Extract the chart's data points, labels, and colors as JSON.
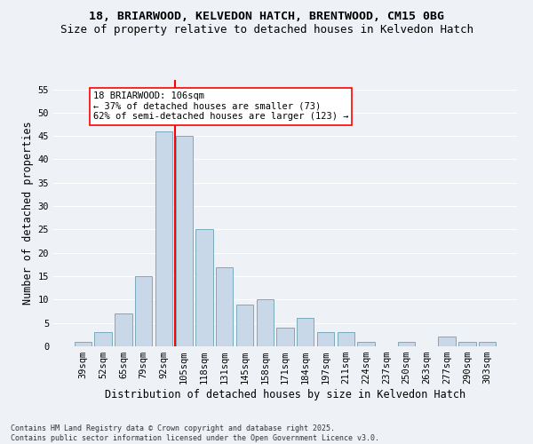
{
  "title1": "18, BRIARWOOD, KELVEDON HATCH, BRENTWOOD, CM15 0BG",
  "title2": "Size of property relative to detached houses in Kelvedon Hatch",
  "xlabel": "Distribution of detached houses by size in Kelvedon Hatch",
  "ylabel": "Number of detached properties",
  "categories": [
    "39sqm",
    "52sqm",
    "65sqm",
    "79sqm",
    "92sqm",
    "105sqm",
    "118sqm",
    "131sqm",
    "145sqm",
    "158sqm",
    "171sqm",
    "184sqm",
    "197sqm",
    "211sqm",
    "224sqm",
    "237sqm",
    "250sqm",
    "263sqm",
    "277sqm",
    "290sqm",
    "303sqm"
  ],
  "values": [
    1,
    3,
    7,
    15,
    46,
    45,
    25,
    17,
    9,
    10,
    4,
    6,
    3,
    3,
    1,
    0,
    1,
    0,
    2,
    1,
    1
  ],
  "bar_color": "#c8d8e8",
  "bar_edge_color": "#7aaabb",
  "vline_color": "red",
  "annotation_text": "18 BRIARWOOD: 106sqm\n← 37% of detached houses are smaller (73)\n62% of semi-detached houses are larger (123) →",
  "annotation_box_color": "white",
  "annotation_box_edge": "red",
  "footer1": "Contains HM Land Registry data © Crown copyright and database right 2025.",
  "footer2": "Contains public sector information licensed under the Open Government Licence v3.0.",
  "ylim": [
    0,
    57
  ],
  "yticks": [
    0,
    5,
    10,
    15,
    20,
    25,
    30,
    35,
    40,
    45,
    50,
    55
  ],
  "background_color": "#eef2f7",
  "grid_color": "#ffffff",
  "title_fontsize": 9.5,
  "subtitle_fontsize": 9,
  "axis_label_fontsize": 8.5,
  "tick_fontsize": 7.5,
  "annotation_fontsize": 7.5,
  "footer_fontsize": 6,
  "vline_pos": 4.55
}
